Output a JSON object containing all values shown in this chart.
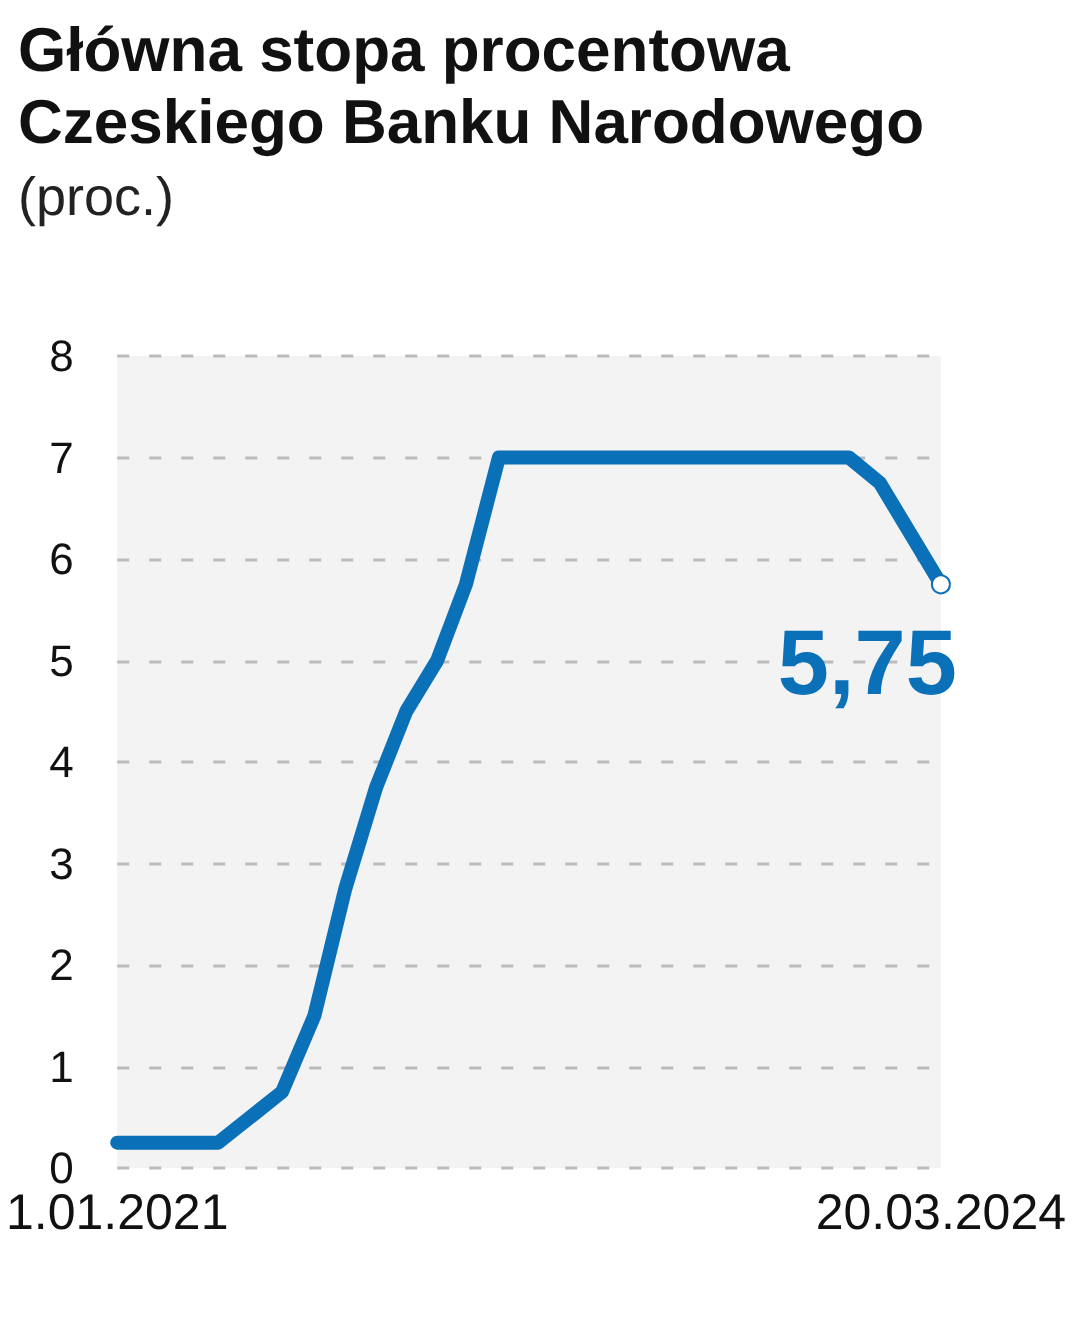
{
  "chart_data": {
    "type": "line",
    "title": "Główna stopa procentowa Czeskiego Banku Narodowego",
    "subtitle": "(proc.)",
    "x": [
      "2021-01-01",
      "2021-05-25",
      "2021-08-24",
      "2021-10-09",
      "2021-11-22",
      "2022-01-05",
      "2022-02-17",
      "2022-04-02",
      "2022-05-13",
      "2022-06-29",
      "2023-11-10",
      "2023-12-24",
      "2024-03-20"
    ],
    "series": [
      {
        "color": "#0a70b8",
        "values": [
          0.25,
          0.25,
          0.75,
          1.5,
          2.75,
          3.75,
          4.5,
          5,
          5.75,
          7,
          7,
          6.75,
          5.75
        ],
        "value_labels": [
          null,
          null,
          null,
          null,
          null,
          null,
          null,
          null,
          null,
          null,
          null,
          null,
          "5,75"
        ]
      }
    ],
    "xlim": [
      "2021-01-01",
      "2024-03-20"
    ],
    "xticks": [
      {
        "value": "2021-01-01",
        "label": "1.01.2021"
      },
      {
        "value": "2024-03-20",
        "label": "20.03.2024"
      }
    ],
    "ylim": [
      0,
      8
    ],
    "yticks": [
      0,
      1,
      2,
      3,
      4,
      5,
      6,
      7,
      8
    ],
    "grid": "y"
  }
}
